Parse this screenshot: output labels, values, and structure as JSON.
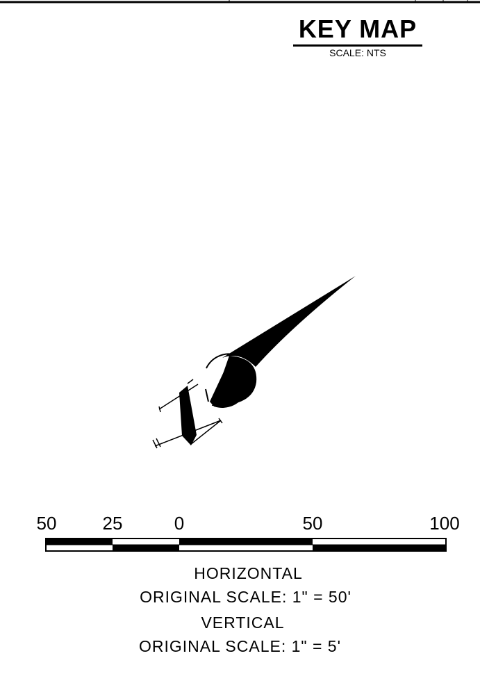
{
  "key_map": {
    "title": "KEY MAP",
    "scale_note": "SCALE: NTS"
  },
  "scale_bar": {
    "tick_labels": [
      "50",
      "25",
      "0",
      "50",
      "100"
    ],
    "horizontal_label": "HORIZONTAL",
    "horizontal_scale": "ORIGINAL SCALE:  1\"  =  50'",
    "vertical_label": "VERTICAL",
    "vertical_scale": "ORIGINAL SCALE:  1\"  =  5'"
  }
}
